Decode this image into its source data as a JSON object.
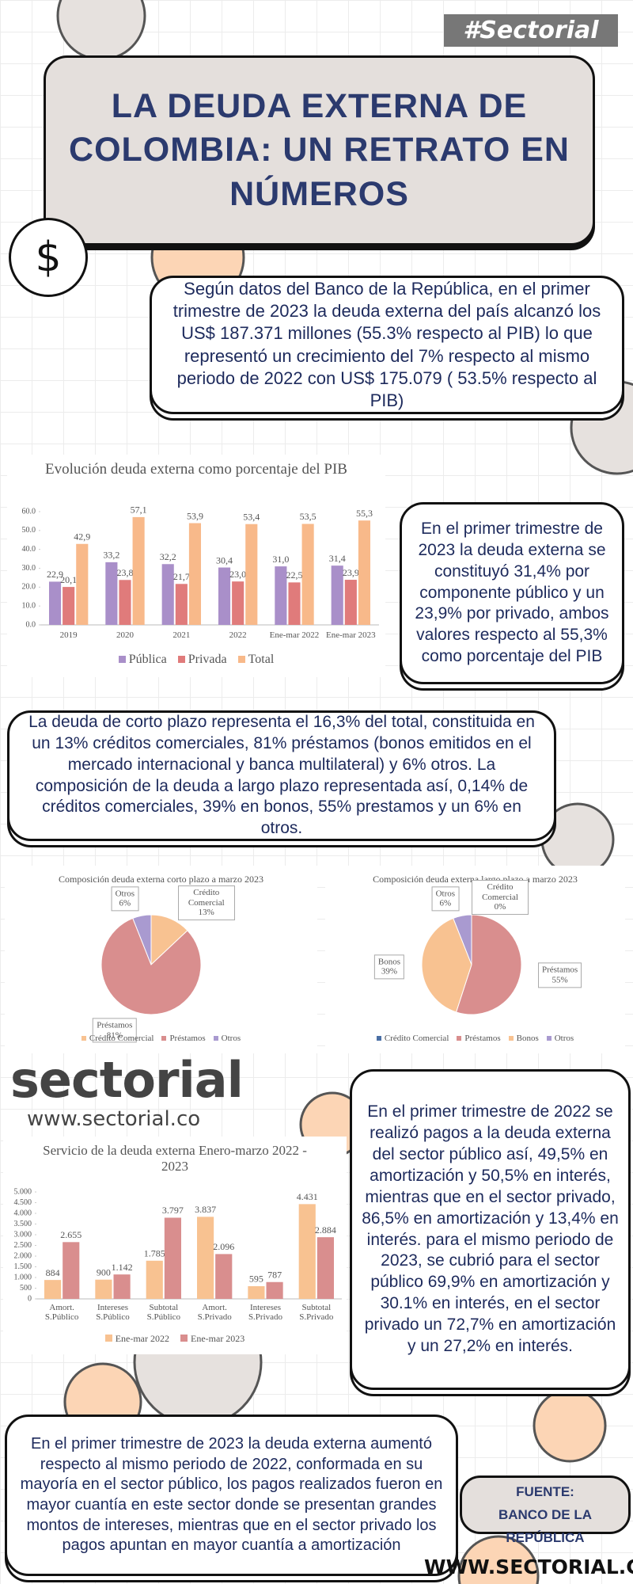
{
  "tag": "#Sectorial",
  "header": {
    "title": "LA DEUDA EXTERNA DE COLOMBIA: UN RETRATO EN NÚMEROS"
  },
  "icon": "$",
  "intro": "Según datos del Banco de la República, en el primer trimestre de 2023 la deuda externa del país alcanzó los US$ 187.371 millones (55.3% respecto al PIB) lo que representó un crecimiento del 7% respecto al mismo periodo de 2022 con US$ 175.079 ( 53.5% respecto al PIB)",
  "paragraphs": [
    "En el primer trimestre de 2023 la deuda externa se constituyó 31,4% por componente público y un 23,9% por privado, ambos valores respecto al 55,3% como porcentaje del PIB",
    "La deuda de corto plazo representa el 16,3% del total, constituida en un 13% créditos comerciales, 81% préstamos (bonos emitidos en el mercado internacional y banca multilateral) y 6% otros. La composición de la deuda a largo plazo representada así, 0,14% de créditos comerciales, 39% en bonos, 55% prestamos y un 6% en otros.",
    "En el primer trimestre de 2022 se realizó pagos a la deuda externa del sector público así, 49,5% en amortización y 50,5% en interés, mientras que en el sector privado, 86,5% en amortización y 13,4% en interés. para el mismo periodo de 2023, se cubrió para el sector público 69,9% en amortización y 30.1% en interés, en el sector privado un 72,7% en amortización y un 27,2% en interés.",
    "En el primer trimestre de 2023 la deuda externa aumentó respecto al mismo periodo de 2022, conformada en su mayoría en el sector público, los pagos realizados fueron en mayor cuantía en este sector donde se presentan grandes montos de intereses, mientras que en el sector privado los pagos apuntan en mayor cuantía a amortización"
  ],
  "logo": {
    "name": "sectorial",
    "url": "www.sectorial.co"
  },
  "source": {
    "label": "FUENTE:",
    "name": "BANCO DE LA REPÚBLICA"
  },
  "footer": "WWW.SECTORIAL.CO",
  "chart_data": [
    {
      "type": "bar",
      "title": "Evolución deuda externa como porcentaje del PIB",
      "categories": [
        "2019",
        "2020",
        "2021",
        "2022",
        "Ene-mar 2022",
        "Ene-mar 2023"
      ],
      "series": [
        {
          "name": "Pública",
          "color": "#a98fc9",
          "values": [
            22.9,
            33.2,
            32.2,
            30.4,
            31.0,
            31.4
          ],
          "value_labels": [
            "22,9",
            "33,2",
            "32,2",
            "30,4",
            "31,0",
            "31,4"
          ]
        },
        {
          "name": "Privada",
          "color": "#e07b7b",
          "values": [
            20.1,
            23.8,
            21.7,
            23.0,
            22.5,
            23.9
          ],
          "value_labels": [
            "20,1",
            "23,8",
            "21,7",
            "23,0",
            "22,5",
            "23,9"
          ]
        },
        {
          "name": "Total",
          "color": "#f8b98a",
          "values": [
            42.9,
            57.1,
            53.9,
            53.4,
            53.5,
            55.3
          ],
          "value_labels": [
            "42,9",
            "57,1",
            "53,9",
            "53,4",
            "53,5",
            "55,3"
          ]
        }
      ],
      "ylim": [
        0,
        60
      ],
      "yticks": [
        {
          "value": 0,
          "label": "0.0"
        },
        {
          "value": 10,
          "label": "10.0"
        },
        {
          "value": 20,
          "label": "20.0"
        },
        {
          "value": 30,
          "label": "30.0"
        },
        {
          "value": 40,
          "label": "40.0"
        },
        {
          "value": 50,
          "label": "50.0"
        },
        {
          "value": 60,
          "label": "60.0"
        }
      ],
      "grid": false
    },
    {
      "type": "pie",
      "title": "Composición deuda externa corto plazo a marzo 2023",
      "categories": [
        "Crédito Comercial",
        "Préstamos",
        "Otros"
      ],
      "values": [
        13,
        81,
        6
      ],
      "value_labels": [
        "13%",
        "81%",
        "6%"
      ],
      "colors": [
        "#f8c291",
        "#d98e8e",
        "#a99ad0"
      ]
    },
    {
      "type": "pie",
      "title": "Composición deuda externa largo plazo a marzo 2023",
      "categories": [
        "Crédito Comercial",
        "Préstamos",
        "Bonos",
        "Otros"
      ],
      "values": [
        0,
        55,
        39,
        6
      ],
      "value_labels": [
        "0%",
        "55%",
        "39%",
        "6%"
      ],
      "colors": [
        "#4a6fa5",
        "#d98e8e",
        "#f8c291",
        "#a99ad0"
      ]
    },
    {
      "type": "bar",
      "title": "Servicio de la deuda externa Enero-marzo 2022 - 2023",
      "categories": [
        "Amort. S.Público",
        "Intereses S.Público",
        "Subtotal S.Público",
        "Amort. S.Privado",
        "Intereses S.Privado",
        "Subtotal S.Privado"
      ],
      "series": [
        {
          "name": "Ene-mar 2022",
          "color": "#f8c291",
          "values": [
            884,
            900,
            1785,
            3837,
            595,
            4431
          ],
          "value_labels": [
            "884",
            "900",
            "1.785",
            "3.837",
            "595",
            "4.431"
          ]
        },
        {
          "name": "Ene-mar 2023",
          "color": "#d98e8e",
          "values": [
            2655,
            1142,
            3797,
            2096,
            787,
            2884
          ],
          "value_labels": [
            "2.655",
            "1.142",
            "3.797",
            "2.096",
            "787",
            "2.884"
          ]
        }
      ],
      "ylim": [
        0,
        5000
      ],
      "yticks": [
        0,
        500,
        {
          "value": 1000,
          "label": "1.000"
        },
        {
          "value": 1500,
          "label": "1.500"
        },
        {
          "value": 2000,
          "label": "2.000"
        },
        {
          "value": 2500,
          "label": "2.500"
        },
        {
          "value": 3000,
          "label": "3.000"
        },
        {
          "value": 3500,
          "label": "3.500"
        },
        {
          "value": 4000,
          "label": "4.000"
        },
        {
          "value": 4500,
          "label": "4.500"
        },
        {
          "value": 5000,
          "label": "5.000"
        }
      ],
      "grid": false
    }
  ]
}
